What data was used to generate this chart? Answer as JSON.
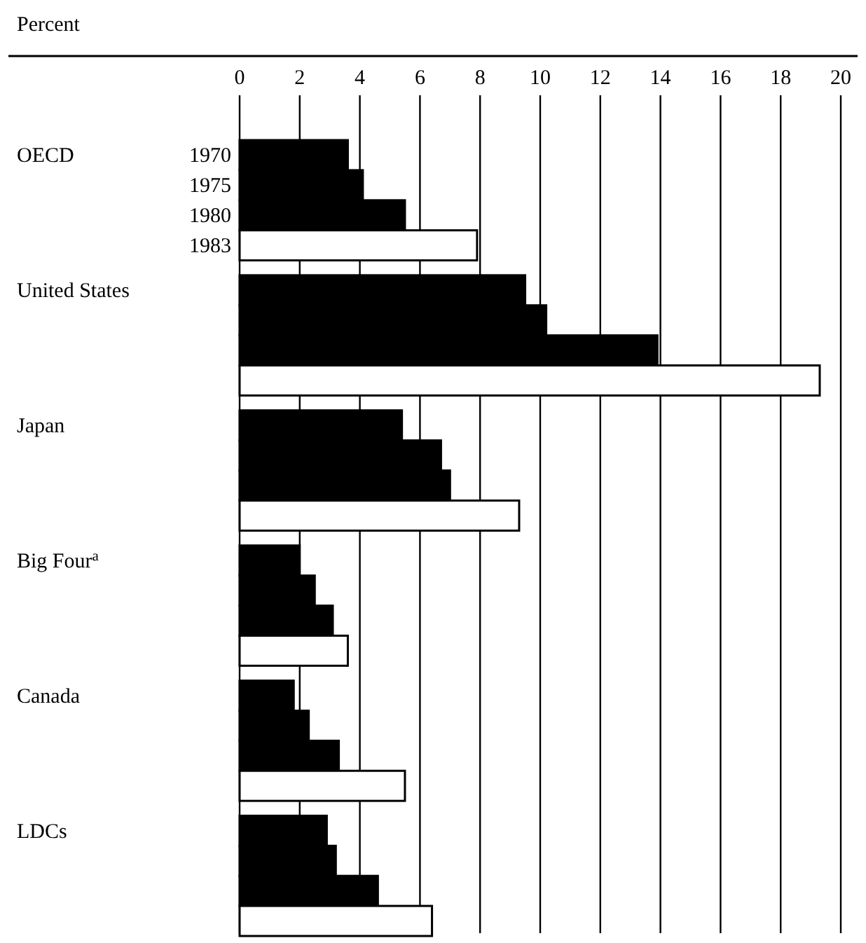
{
  "chart_data": {
    "type": "bar",
    "orientation": "horizontal",
    "xlabel": "Percent",
    "categories": [
      "OECD",
      "United States",
      "Japan",
      "Big Four$^{a}$",
      "Canada",
      "LDCs"
    ],
    "series": [
      {
        "name": "1970",
        "color": "#000000",
        "values": [
          3.6,
          9.5,
          5.4,
          2.0,
          1.8,
          2.9
        ]
      },
      {
        "name": "1975",
        "color": "#000000",
        "values": [
          4.1,
          10.2,
          6.7,
          2.5,
          2.3,
          3.2
        ]
      },
      {
        "name": "1980",
        "color": "#000000",
        "values": [
          5.5,
          13.9,
          7.0,
          3.1,
          3.3,
          4.6
        ]
      },
      {
        "name": "1983",
        "color": "#ffffff",
        "values": [
          7.9,
          19.3,
          9.3,
          3.6,
          5.5,
          6.4
        ]
      }
    ],
    "xlim": [
      0,
      20
    ],
    "xticks": [
      0,
      2,
      4,
      6,
      8,
      10,
      12,
      14,
      16,
      18,
      20
    ],
    "grid": "x"
  }
}
